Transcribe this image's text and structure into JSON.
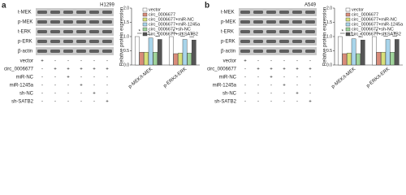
{
  "panels": [
    {
      "letter": "a",
      "cell_line": "H1299",
      "blot_labels": [
        "t-MEK",
        "p-MEK",
        "t-ERK",
        "p-ERK",
        "β-actin"
      ],
      "treatments": [
        {
          "name": "vector",
          "signs": [
            "+",
            "-",
            "-",
            "-",
            "-",
            "-"
          ]
        },
        {
          "name": "circ_0006677",
          "signs": [
            "-",
            "+",
            "+",
            "+",
            "+",
            "+"
          ]
        },
        {
          "name": "miR-NC",
          "signs": [
            "-",
            "-",
            "+",
            "-",
            "-",
            "-"
          ]
        },
        {
          "name": "miR-1245a",
          "signs": [
            "-",
            "-",
            "-",
            "+",
            "-",
            "-"
          ]
        },
        {
          "name": "sh-NC",
          "signs": [
            "-",
            "-",
            "-",
            "-",
            "+",
            "-"
          ]
        },
        {
          "name": "sh-SATB2",
          "signs": [
            "-",
            "-",
            "-",
            "-",
            "-",
            "+"
          ]
        }
      ]
    },
    {
      "letter": "b",
      "cell_line": "A549",
      "blot_labels": [
        "t-MEK",
        "p-MEK",
        "t-ERK",
        "p-ERK",
        "β-actin"
      ],
      "treatments": [
        {
          "name": "vector",
          "signs": [
            "+",
            "-",
            "-",
            "-",
            "-",
            "-"
          ]
        },
        {
          "name": "circ_0006677",
          "signs": [
            "-",
            "+",
            "+",
            "+",
            "+",
            "+"
          ]
        },
        {
          "name": "miR-NC",
          "signs": [
            "-",
            "-",
            "+",
            "-",
            "-",
            "-"
          ]
        },
        {
          "name": "miR-1245a",
          "signs": [
            "-",
            "-",
            "-",
            "+",
            "-",
            "-"
          ]
        },
        {
          "name": "sh-NC",
          "signs": [
            "-",
            "-",
            "-",
            "-",
            "+",
            "-"
          ]
        },
        {
          "name": "sh-SATB2",
          "signs": [
            "-",
            "-",
            "-",
            "-",
            "-",
            "+"
          ]
        }
      ]
    }
  ],
  "chart_data": [
    {
      "type": "bar",
      "y_label": "Relative protein expression",
      "categories": [
        "p-MEK/t-MEK",
        "p-ERK/t-ERK"
      ],
      "ylim": [
        0,
        2.0
      ],
      "yticks": [
        {
          "value": 0,
          "label": "0.0"
        },
        0.5,
        {
          "value": 1,
          "label": "1.0"
        },
        1.5,
        {
          "value": 2,
          "label": "2.0"
        }
      ],
      "significance": [
        [
          "*",
          "*",
          "*"
        ],
        [
          "*",
          "*",
          "*"
        ]
      ],
      "series": [
        {
          "name": "vector",
          "color": "#ffffff",
          "values": [
            1.0,
            1.0
          ]
        },
        {
          "name": "circ_0006677",
          "color": "#d98c7a",
          "values": [
            0.45,
            0.4
          ]
        },
        {
          "name": "circ_0006677+miR-NC",
          "color": "#d8e07a",
          "values": [
            0.45,
            0.42
          ]
        },
        {
          "name": "circ_0006677+miR-1245a",
          "color": "#a8d4ea",
          "values": [
            0.95,
            0.9
          ]
        },
        {
          "name": "circ_0006677+sh-NC",
          "color": "#9fd49a",
          "values": [
            0.45,
            0.42
          ]
        },
        {
          "name": "circ_0006677+sh-SATB2",
          "color": "#555555",
          "values": [
            0.9,
            0.88
          ]
        }
      ]
    },
    {
      "type": "bar",
      "y_label": "Relative protein expression",
      "categories": [
        "p-MEK/t-MEK",
        "p-ERK/t-ERK"
      ],
      "ylim": [
        0,
        2.0
      ],
      "yticks": [
        {
          "value": 0,
          "label": "0.0"
        },
        0.5,
        {
          "value": 1,
          "label": "1.0"
        },
        1.5,
        {
          "value": 2,
          "label": "2.0"
        }
      ],
      "significance": [
        [
          "*",
          "*",
          "*"
        ],
        [
          "*",
          "*",
          "*"
        ]
      ],
      "series": [
        {
          "name": "vector",
          "color": "#ffffff",
          "values": [
            1.0,
            1.0
          ]
        },
        {
          "name": "circ_0006677",
          "color": "#d98c7a",
          "values": [
            0.4,
            0.45
          ]
        },
        {
          "name": "circ_0006677+miR-NC",
          "color": "#d8e07a",
          "values": [
            0.42,
            0.45
          ]
        },
        {
          "name": "circ_0006677+miR-1245a",
          "color": "#a8d4ea",
          "values": [
            0.92,
            0.9
          ]
        },
        {
          "name": "circ_0006677+sh-NC",
          "color": "#9fd49a",
          "values": [
            0.4,
            0.45
          ]
        },
        {
          "name": "circ_0006677+sh-SATB2",
          "color": "#555555",
          "values": [
            0.88,
            0.9
          ]
        }
      ]
    }
  ]
}
